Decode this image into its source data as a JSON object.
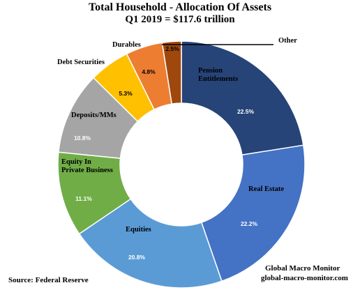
{
  "chart_data": {
    "type": "pie",
    "title": "Total Household - Allocation Of Assets",
    "subtitle": "Q1 2019 = $117.6 trillion",
    "slices": [
      {
        "label": "Pension Entitlements",
        "value": 22.5,
        "value_label": "22.5%",
        "color": "#264478"
      },
      {
        "label": "Real Estate",
        "value": 22.2,
        "value_label": "22.2%",
        "color": "#4472C4"
      },
      {
        "label": "Equities",
        "value": 20.8,
        "value_label": "20.8%",
        "color": "#5B9BD5"
      },
      {
        "label": "Equity In Private Business",
        "value": 11.1,
        "value_label": "11.1%",
        "color": "#70AD47"
      },
      {
        "label": "Deposits/MMs",
        "value": 10.8,
        "value_label": "10.8%",
        "color": "#A5A5A5"
      },
      {
        "label": "Debt Securities",
        "value": 5.3,
        "value_label": "5.3%",
        "color": "#FFC000"
      },
      {
        "label": "Durables",
        "value": 4.8,
        "value_label": "4.8%",
        "color": "#ED7D31"
      },
      {
        "label": "Other",
        "value": 2.5,
        "value_label": "2.5%",
        "color": "#9E480E"
      }
    ]
  },
  "footer": {
    "source": "Source: Federal Reserve",
    "credit_name": "Global Macro Monitor",
    "credit_url": "global-macro-monitor.com"
  }
}
